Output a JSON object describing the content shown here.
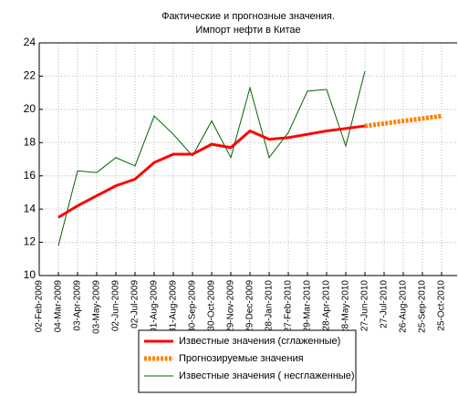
{
  "chart_data": {
    "type": "line",
    "title": "Фактические и прогнозные значения.",
    "subtitle": "Импорт нефти в Китае",
    "categories": [
      "02-Feb-2009",
      "04-Mar-2009",
      "03-Apr-2009",
      "03-May-2009",
      "02-Jun-2009",
      "02-Jul-2009",
      "01-Aug-2009",
      "31-Aug-2009",
      "30-Sep-2009",
      "30-Oct-2009",
      "29-Nov-2009",
      "29-Dec-2009",
      "28-Jan-2010",
      "27-Feb-2010",
      "29-Mar-2010",
      "28-Apr-2010",
      "28-May-2010",
      "27-Jun-2010",
      "27-Jul-2010",
      "26-Aug-2010",
      "25-Sep-2010",
      "25-Oct-2010"
    ],
    "series": [
      {
        "name": "Известные значения (сглаженные)",
        "color": "#ff0000",
        "style": "solid",
        "values": [
          null,
          13.5,
          14.2,
          14.8,
          15.4,
          15.8,
          16.8,
          17.3,
          17.3,
          17.9,
          17.7,
          18.7,
          18.2,
          18.3,
          18.5,
          18.7,
          18.85,
          19.0,
          null,
          null,
          null,
          null
        ]
      },
      {
        "name": "Прогнозируемые значения",
        "color": "#ff7f00",
        "style": "dashed",
        "values": [
          null,
          null,
          null,
          null,
          null,
          null,
          null,
          null,
          null,
          null,
          null,
          null,
          null,
          null,
          null,
          null,
          null,
          19.0,
          19.15,
          19.3,
          19.45,
          19.6
        ]
      },
      {
        "name": "Известные значения ( несглаженные)",
        "color": "#006400",
        "style": "thin",
        "values": [
          null,
          11.8,
          16.3,
          16.2,
          17.1,
          16.6,
          19.6,
          18.5,
          17.2,
          19.3,
          17.1,
          21.3,
          17.1,
          18.6,
          21.1,
          21.2,
          17.8,
          22.3,
          null,
          null,
          null,
          null
        ]
      }
    ],
    "ylim": [
      10,
      24
    ],
    "yticks": [
      10,
      12,
      14,
      16,
      18,
      20,
      22,
      24
    ],
    "grid": true
  }
}
